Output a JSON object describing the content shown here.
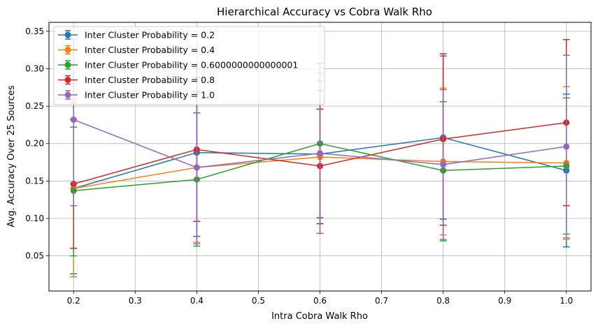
{
  "chart_data": {
    "type": "line",
    "title": "Hierarchical Accuracy vs Cobra Walk Rho",
    "xlabel": "Intra Cobra Walk Rho",
    "ylabel": "Avg. Accuracy Over 25 Sources",
    "xlim": [
      0.16,
      1.04
    ],
    "ylim": [
      0.003,
      0.362
    ],
    "x_ticks": [
      0.2,
      0.3,
      0.4,
      0.5,
      0.6,
      0.7,
      0.8,
      0.9,
      1.0
    ],
    "x_tick_labels": [
      "0.2",
      "0.3",
      "0.4",
      "0.5",
      "0.6",
      "0.7",
      "0.8",
      "0.9",
      "1.0"
    ],
    "y_ticks": [
      0.05,
      0.1,
      0.15,
      0.2,
      0.25,
      0.3,
      0.35
    ],
    "y_tick_labels": [
      "0.05",
      "0.10",
      "0.15",
      "0.20",
      "0.25",
      "0.30",
      "0.35"
    ],
    "grid": true,
    "legend_position": "top-left",
    "x": [
      0.2,
      0.4,
      0.6,
      0.8,
      1.0
    ],
    "series": [
      {
        "name": "Inter Cluster Probability = 0.2",
        "color": "#1f77b4",
        "values": [
          0.14,
          0.188,
          0.186,
          0.208,
          0.164
        ],
        "err_low": [
          0.026,
          0.076,
          0.101,
          0.099,
          0.062
        ],
        "err_high": [
          0.254,
          0.3,
          0.271,
          0.317,
          0.266
        ]
      },
      {
        "name": "Inter Cluster Probability = 0.4",
        "color": "#ff7f0e",
        "values": [
          0.14,
          0.168,
          0.182,
          0.176,
          0.174
        ],
        "err_low": [
          0.022,
          0.068,
          0.08,
          0.078,
          0.072
        ],
        "err_high": [
          0.258,
          0.268,
          0.284,
          0.274,
          0.276
        ]
      },
      {
        "name": "Inter Cluster Probability = 0.6000000000000001",
        "color": "#2ca02c",
        "values": [
          0.137,
          0.152,
          0.2,
          0.164,
          0.17
        ],
        "err_low": [
          0.05,
          0.063,
          0.093,
          0.07,
          0.079
        ],
        "err_high": [
          0.222,
          0.241,
          0.307,
          0.256,
          0.261
        ]
      },
      {
        "name": "Inter Cluster Probability = 0.8",
        "color": "#d62728",
        "values": [
          0.146,
          0.192,
          0.17,
          0.206,
          0.228
        ],
        "err_low": [
          0.06,
          0.096,
          0.093,
          0.091,
          0.117
        ],
        "err_high": [
          0.232,
          0.288,
          0.246,
          0.32,
          0.339
        ]
      },
      {
        "name": "Inter Cluster Probability = 1.0",
        "color": "#9467bd",
        "values": [
          0.232,
          0.168,
          0.187,
          0.172,
          0.196
        ],
        "err_low": [
          0.117,
          0.066,
          0.08,
          0.072,
          0.074
        ],
        "err_high": [
          0.34,
          0.27,
          0.294,
          0.272,
          0.318
        ]
      }
    ]
  }
}
